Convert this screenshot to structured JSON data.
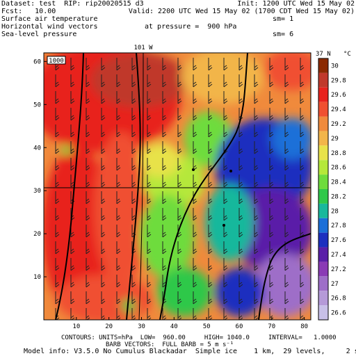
{
  "header": {
    "line1_left": "Dataset: test  RIP: rip20020515 d3",
    "line1_right": "Init: 1200 UTC Wed 15 May 02",
    "line2_left": "Fcst:   10.00",
    "line2_right": "Valid: 2200 UTC Wed 15 May 02 (1700 CDT Wed 15 May 02)",
    "line3_left": "Surface air temperature",
    "line3_right": "sm= 1",
    "line4_left": "Horizontal wind vectors",
    "line4_mid": "at pressure =  900 hPa",
    "line5_left": "Sea-level pressure",
    "line5_right": "sm= 6"
  },
  "map": {
    "meridian_label": "101 W",
    "parallel_label": "37 N",
    "isobar_label": "1000",
    "x_ticks": [
      "10",
      "20",
      "30",
      "40",
      "50",
      "60",
      "70",
      "80"
    ],
    "y_ticks": [
      "10",
      "20",
      "30",
      "40",
      "50",
      "60"
    ]
  },
  "colorbar": {
    "unit": "°C",
    "labels": [
      "30",
      "29.8",
      "29.6",
      "29.4",
      "29.2",
      "29",
      "28.8",
      "28.6",
      "28.4",
      "28.2",
      "28",
      "27.8",
      "27.6",
      "27.4",
      "27.2",
      "27",
      "26.8",
      "26.6"
    ],
    "colors": [
      "#8b2a00",
      "#c0392b",
      "#e8231e",
      "#f05030",
      "#f08a3c",
      "#f2b54a",
      "#e8e24a",
      "#b5e83a",
      "#6edc3c",
      "#2fc84a",
      "#19b89c",
      "#1b6fd8",
      "#1d2fbf",
      "#5a1fa8",
      "#8a3ab5",
      "#9e6ec8",
      "#b59ad8",
      "#c8c0e8"
    ]
  },
  "footer": {
    "line1": "CONTOURS: UNITS=hPa  LOW=  960.00     HIGH= 1040.0     INTERVAL=   1.0000",
    "line2": "BARB VECTORS:  FULL BARB = 5 m s⁻¹",
    "line3": "Model info: V3.5.0 No Cumulus Blackadar  Simple ice    1 km,  29 levels,     2 sec"
  }
}
